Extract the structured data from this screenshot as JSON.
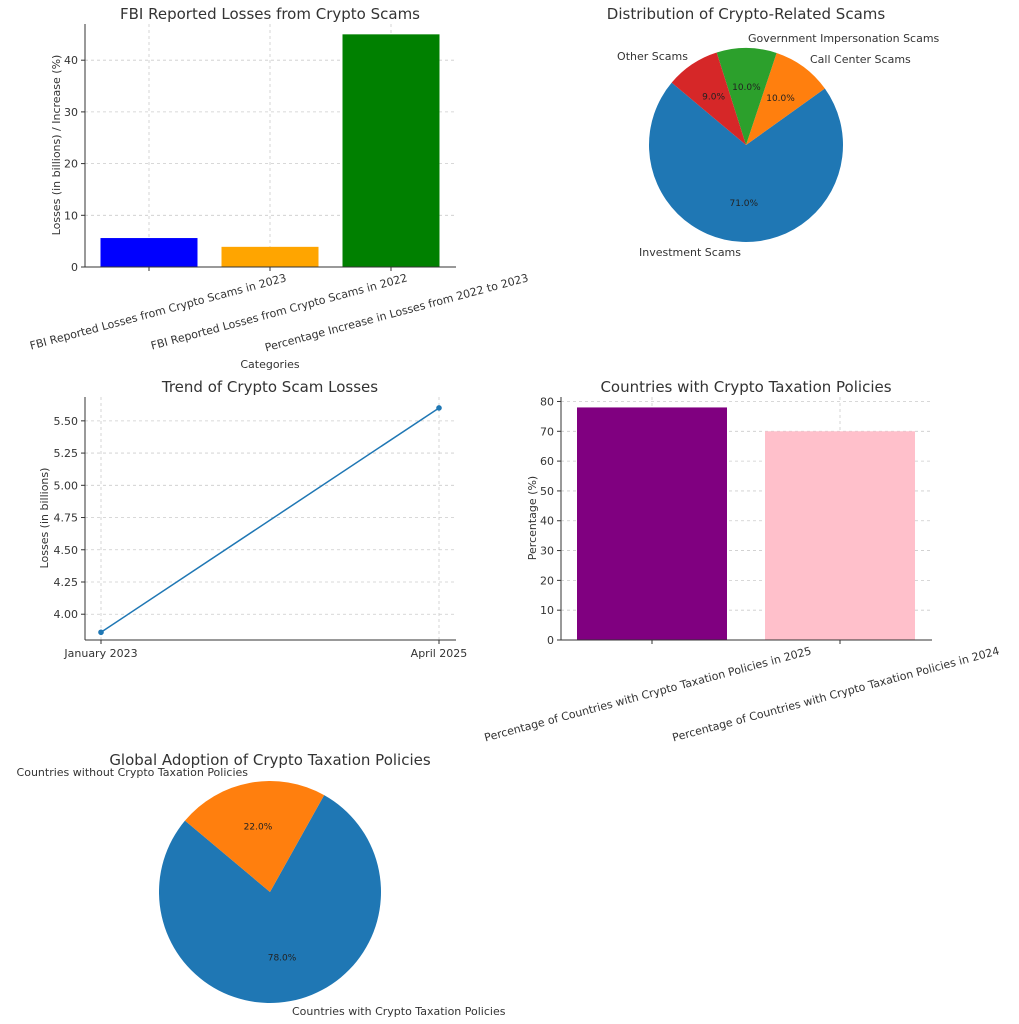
{
  "chart_data": [
    {
      "type": "bar",
      "title": "FBI Reported Losses from Crypto Scams",
      "xlabel": "Categories",
      "ylabel": "Losses (in billions) / Increase (%)",
      "categories": [
        "FBI Reported Losses from Crypto Scams in 2023",
        "FBI Reported Losses from Crypto Scams in 2022",
        "Percentage Increase in Losses from 2022 to 2023"
      ],
      "values": [
        5.6,
        3.9,
        45
      ],
      "colors": [
        "#0000ff",
        "#ffa500",
        "#008000"
      ],
      "ylim": [
        0,
        47
      ],
      "yticks": [
        0,
        10,
        20,
        30,
        40
      ],
      "grid": true
    },
    {
      "type": "pie",
      "title": "Distribution of Crypto-Related Scams",
      "labels": [
        "Investment Scams",
        "Call Center Scams",
        "Government Impersonation Scams",
        "Other Scams"
      ],
      "values": [
        71.0,
        10.0,
        10.0,
        9.0
      ],
      "pct_labels": [
        "71.0%",
        "10.0%",
        "10.0%",
        "9.0%"
      ],
      "colors": [
        "#1f77b4",
        "#ff7f0e",
        "#2ca02c",
        "#d62728"
      ],
      "start_angle": 140
    },
    {
      "type": "line",
      "title": "Trend of Crypto Scam Losses",
      "xlabel": "",
      "ylabel": "Losses (in billions)",
      "categories": [
        "January 2023",
        "April 2025"
      ],
      "values": [
        3.86,
        5.6
      ],
      "color": "#1f77b4",
      "ylim": [
        3.8,
        5.685
      ],
      "yticks": [
        "4.00",
        "4.25",
        "4.50",
        "4.75",
        "5.00",
        "5.25",
        "5.50"
      ],
      "grid": true
    },
    {
      "type": "bar",
      "title": "Countries with Crypto Taxation Policies",
      "xlabel": "",
      "ylabel": "Percentage (%)",
      "categories": [
        "Percentage of Countries with Crypto Taxation Policies in 2025",
        "Percentage of Countries with Crypto Taxation Policies in 2024"
      ],
      "values": [
        78,
        70
      ],
      "colors": [
        "#800080",
        "#ffc0cb"
      ],
      "ylim": [
        0,
        81.5
      ],
      "yticks": [
        0,
        10,
        20,
        30,
        40,
        50,
        60,
        70,
        80
      ],
      "grid": true
    },
    {
      "type": "pie",
      "title": "Global Adoption of Crypto Taxation Policies",
      "labels": [
        "Countries with Crypto Taxation Policies",
        "Countries without Crypto Taxation Policies"
      ],
      "values": [
        78.0,
        22.0
      ],
      "pct_labels": [
        "78.0%",
        "22.0%"
      ],
      "colors": [
        "#1f77b4",
        "#ff7f0e"
      ],
      "start_angle": 140
    }
  ]
}
